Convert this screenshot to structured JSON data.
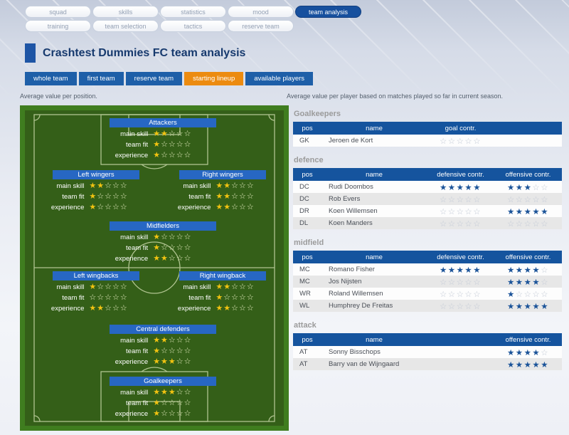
{
  "nav": {
    "row1": [
      {
        "label": "squad",
        "active": false
      },
      {
        "label": "skills",
        "active": false
      },
      {
        "label": "statistics",
        "active": false
      },
      {
        "label": "mood",
        "active": false
      },
      {
        "label": "team analysis",
        "active": true
      }
    ],
    "row2": [
      {
        "label": "training",
        "active": false
      },
      {
        "label": "team selection",
        "active": false
      },
      {
        "label": "tactics",
        "active": false
      },
      {
        "label": "reserve team",
        "active": false
      }
    ]
  },
  "title": "Crashtest Dummies FC team analysis",
  "subtabs": [
    {
      "label": "whole team",
      "active": false
    },
    {
      "label": "first team",
      "active": false
    },
    {
      "label": "reserve team",
      "active": false
    },
    {
      "label": "starting lineup",
      "active": true
    },
    {
      "label": "available players",
      "active": false
    }
  ],
  "captions": {
    "left": "Average value per position.",
    "right": "Average value per player based on matches played so far in current season."
  },
  "pitch": {
    "row_labels": [
      "main skill",
      "team fit",
      "experience"
    ],
    "max_stars": 5,
    "groups": [
      {
        "name": "Attackers",
        "stars": [
          2,
          1,
          1
        ]
      },
      {
        "name": "Left wingers",
        "stars": [
          2,
          1,
          1
        ]
      },
      {
        "name": "Right wingers",
        "stars": [
          2,
          2,
          2
        ]
      },
      {
        "name": "Midfielders",
        "stars": [
          1,
          1,
          2
        ]
      },
      {
        "name": "Left wingbacks",
        "stars": [
          1,
          0,
          2
        ]
      },
      {
        "name": "Right wingback",
        "stars": [
          2,
          1,
          2
        ]
      },
      {
        "name": "Central defenders",
        "stars": [
          2,
          1,
          3
        ]
      },
      {
        "name": "Goalkeepers",
        "stars": [
          3,
          1,
          1
        ]
      }
    ]
  },
  "tables": [
    {
      "heading": "Goalkeepers",
      "columns": {
        "pos": "pos",
        "name": "name",
        "col3": "goal contr.",
        "col4": null
      },
      "rows": [
        {
          "pos": "GK",
          "name": "Jeroen de Kort",
          "col3": 0,
          "col4": null
        }
      ]
    },
    {
      "heading": "defence",
      "columns": {
        "pos": "pos",
        "name": "name",
        "col3": "defensive contr.",
        "col4": "offensive contr."
      },
      "rows": [
        {
          "pos": "DC",
          "name": "Rudi Doombos",
          "col3": 5,
          "col4": 3
        },
        {
          "pos": "DC",
          "name": "Rob Evers",
          "col3": 0,
          "col4": 0
        },
        {
          "pos": "DR",
          "name": "Koen Willemsen",
          "col3": 0,
          "col4": 5
        },
        {
          "pos": "DL",
          "name": "Koen Manders",
          "col3": 0,
          "col4": 0
        }
      ]
    },
    {
      "heading": "midfield",
      "columns": {
        "pos": "pos",
        "name": "name",
        "col3": "defensive contr.",
        "col4": "offensive contr."
      },
      "rows": [
        {
          "pos": "MC",
          "name": "Romano Fisher",
          "col3": 5,
          "col4": 4
        },
        {
          "pos": "MC",
          "name": "Jos Nijsten",
          "col3": 0,
          "col4": 4
        },
        {
          "pos": "WR",
          "name": "Roland Willemsen",
          "col3": 0,
          "col4": 1
        },
        {
          "pos": "WL",
          "name": "Humphrey De Freitas",
          "col3": 0,
          "col4": 5
        }
      ]
    },
    {
      "heading": "attack",
      "columns": {
        "pos": "pos",
        "name": "name",
        "col3": null,
        "col4": "offensive contr."
      },
      "rows": [
        {
          "pos": "AT",
          "name": "Sonny Bisschops",
          "col3": null,
          "col4": 4
        },
        {
          "pos": "AT",
          "name": "Barry van de Wijngaard",
          "col3": null,
          "col4": 5
        }
      ]
    }
  ],
  "colors": {
    "accent_blue": "#1e5fa8",
    "active_orange": "#ec8b10",
    "table_header_blue": "#15549e",
    "nav_active_blue": "#17509e",
    "star_yellow": "#f2c311",
    "star_blue": "#1c5499",
    "pitch_green": "#345f18",
    "pitch_green_border": "#3f7d1f"
  }
}
